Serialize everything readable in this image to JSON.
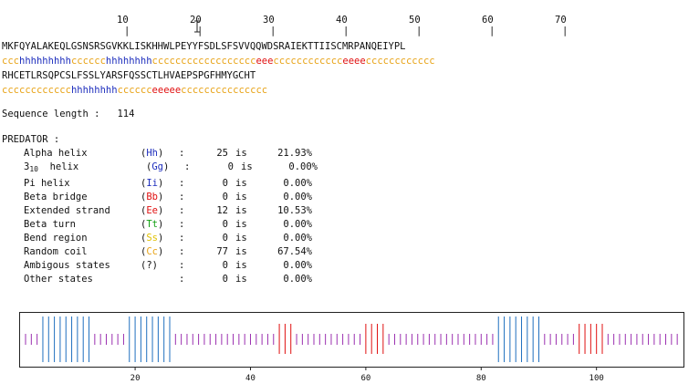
{
  "ruler": [
    "10",
    "20",
    "30",
    "40",
    "50",
    "60",
    "70"
  ],
  "sequence": {
    "line1": "MKFQYALAKEQLGSNSRSGVKKLISKHHWLPEYYFSDLSFSVVQQWDSRAIEKTTIISCMRPANQEIYPL",
    "line2": "RHCETLRSQPCSLFSSLYARSFQSSCTLHVAEPSPGFHMYGCHT",
    "ss_line1": "ccchhhhhhhhhcccccchhhhhhhhcccccccccccccccccceeecccccccccccceeeecccccccccccc",
    "ss_line2": "cccccccccccchhhhhhhhcccccceeeeeccccccccccccccc"
  },
  "sequence_length": {
    "label": "Sequence length :",
    "value": "114"
  },
  "predator": {
    "title": "PREDATOR :",
    "rows": [
      {
        "name": "Alpha helix",
        "code": "Hh",
        "color": "#1f2fbd",
        "count": "25",
        "is": "is",
        "pct": "21.93%"
      },
      {
        "name": "helix",
        "name_prefix": "3",
        "name_sub": "10",
        "code": "Gg",
        "color": "#1f2fbd",
        "count": "0",
        "is": "is",
        "pct": "0.00%"
      },
      {
        "name": "Pi helix",
        "code": "Ii",
        "color": "#1f2fbd",
        "count": "0",
        "is": "is",
        "pct": "0.00%"
      },
      {
        "name": "Beta bridge",
        "code": "Bb",
        "color": "#e01010",
        "count": "0",
        "is": "is",
        "pct": "0.00%"
      },
      {
        "name": "Extended strand",
        "code": "Ee",
        "color": "#e01010",
        "count": "12",
        "is": "is",
        "pct": "10.53%"
      },
      {
        "name": "Beta turn",
        "code": "Tt",
        "color": "#12a012",
        "count": "0",
        "is": "is",
        "pct": "0.00%"
      },
      {
        "name": "Bend region",
        "code": "Ss",
        "color": "#e0c000",
        "count": "0",
        "is": "is",
        "pct": "0.00%"
      },
      {
        "name": "Random coil",
        "code": "Cc",
        "color": "#e8a317",
        "count": "77",
        "is": "is",
        "pct": "67.54%"
      },
      {
        "name": "Ambigous states",
        "code": "?",
        "color": "#111111",
        "count": "0",
        "is": "is",
        "pct": "0.00%"
      },
      {
        "name": "Other states",
        "code": "",
        "color": "#111111",
        "count": "0",
        "is": "is",
        "pct": "0.00%"
      }
    ]
  },
  "plot": {
    "x_ticks": [
      "20",
      "40",
      "60",
      "80",
      "100"
    ],
    "colors": {
      "helix": "#1f6fbf",
      "strand": "#e01010",
      "coil": "#9b30b0"
    }
  }
}
